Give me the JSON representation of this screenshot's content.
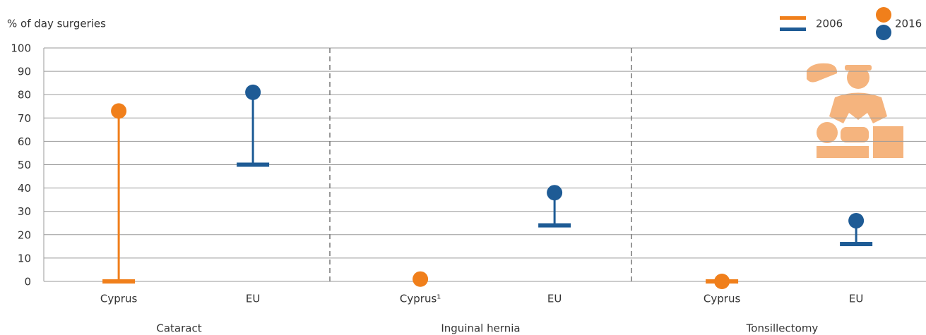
{
  "chart_data": {
    "type": "dumbbell",
    "y_label": "% of day surgeries",
    "groups": [
      "Cataract",
      "Inguinal hernia",
      "Tonsillectomy"
    ],
    "categories": [
      "Cyprus",
      "EU",
      "Cyprus¹",
      "EU",
      "Cyprus",
      "EU"
    ],
    "colors": [
      "#f07f1b",
      "#1e5b95",
      "#f07f1b",
      "#1e5b95",
      "#f07f1b",
      "#1e5b95"
    ],
    "series": [
      {
        "name": "2006",
        "marker": "bar",
        "values": [
          0,
          50,
          null,
          24,
          0,
          16
        ]
      },
      {
        "name": "2016",
        "marker": "dot",
        "values": [
          73,
          81,
          1,
          38,
          0,
          26
        ]
      }
    ],
    "ylim": [
      0,
      100
    ],
    "yticks": [
      0,
      10,
      20,
      30,
      40,
      50,
      60,
      70,
      80,
      90,
      100
    ],
    "grid": true
  }
}
